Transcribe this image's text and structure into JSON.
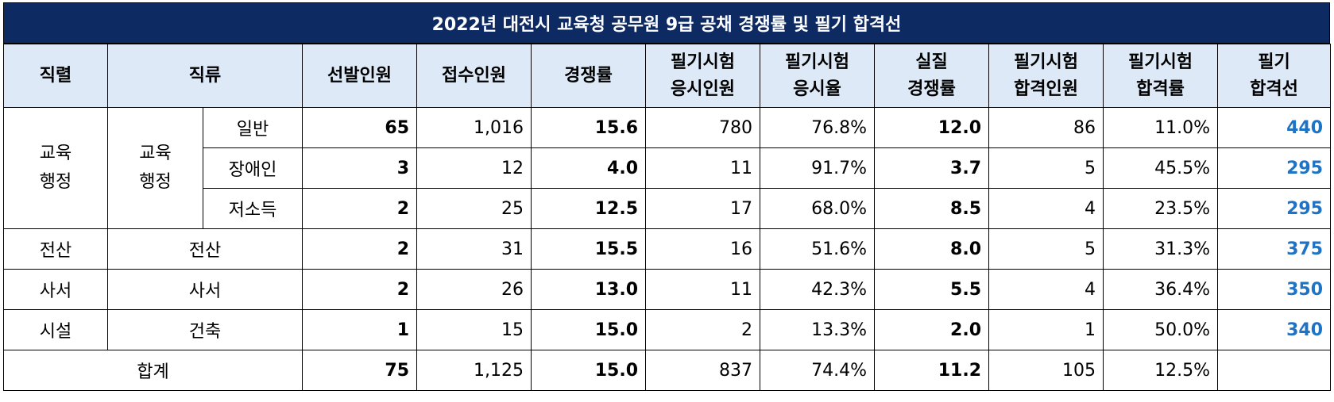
{
  "title": "2022년 대전시 교육청 공무원 9급 공채 경쟁률 및 필기 합격선",
  "headers": {
    "series": "직렬",
    "category": "직류",
    "selected": "선발인원",
    "applicants": "접수인원",
    "competition": "경쟁률",
    "exam_takers": [
      "필기시험",
      "응시인원"
    ],
    "exam_rate": [
      "필기시험",
      "응시율"
    ],
    "real_competition": [
      "실질",
      "경쟁률"
    ],
    "passers": [
      "필기시험",
      "합격인원"
    ],
    "pass_rate": [
      "필기시험",
      "합격률"
    ],
    "cutoff": [
      "필기",
      "합격선"
    ]
  },
  "edu_group": {
    "series": [
      "교육",
      "행정"
    ],
    "category": [
      "교육",
      "행정"
    ]
  },
  "rows": [
    {
      "sub": "일반",
      "selected": "65",
      "applicants": "1,016",
      "competition": "15.6",
      "takers": "780",
      "take_rate": "76.8%",
      "real": "12.0",
      "passers": "86",
      "pass_rate": "11.0%",
      "cutoff": "440"
    },
    {
      "sub": "장애인",
      "selected": "3",
      "applicants": "12",
      "competition": "4.0",
      "takers": "11",
      "take_rate": "91.7%",
      "real": "3.7",
      "passers": "5",
      "pass_rate": "45.5%",
      "cutoff": "295"
    },
    {
      "sub": "저소득",
      "selected": "2",
      "applicants": "25",
      "competition": "12.5",
      "takers": "17",
      "take_rate": "68.0%",
      "real": "8.5",
      "passers": "4",
      "pass_rate": "23.5%",
      "cutoff": "295"
    },
    {
      "series": "전산",
      "category": "전산",
      "selected": "2",
      "applicants": "31",
      "competition": "15.5",
      "takers": "16",
      "take_rate": "51.6%",
      "real": "8.0",
      "passers": "5",
      "pass_rate": "31.3%",
      "cutoff": "375"
    },
    {
      "series": "사서",
      "category": "사서",
      "selected": "2",
      "applicants": "26",
      "competition": "13.0",
      "takers": "11",
      "take_rate": "42.3%",
      "real": "5.5",
      "passers": "4",
      "pass_rate": "36.4%",
      "cutoff": "350"
    },
    {
      "series": "시설",
      "category": "건축",
      "selected": "1",
      "applicants": "15",
      "competition": "15.0",
      "takers": "2",
      "take_rate": "13.3%",
      "real": "2.0",
      "passers": "1",
      "pass_rate": "50.0%",
      "cutoff": "340"
    }
  ],
  "total": {
    "label": "합계",
    "selected": "75",
    "applicants": "1,125",
    "competition": "15.0",
    "takers": "837",
    "take_rate": "74.4%",
    "real": "11.2",
    "passers": "105",
    "pass_rate": "12.5%",
    "cutoff": ""
  },
  "colors": {
    "title_bg": "#0e2a63",
    "header_bg": "#dde9f6",
    "cutoff_text": "#1f73c4"
  }
}
